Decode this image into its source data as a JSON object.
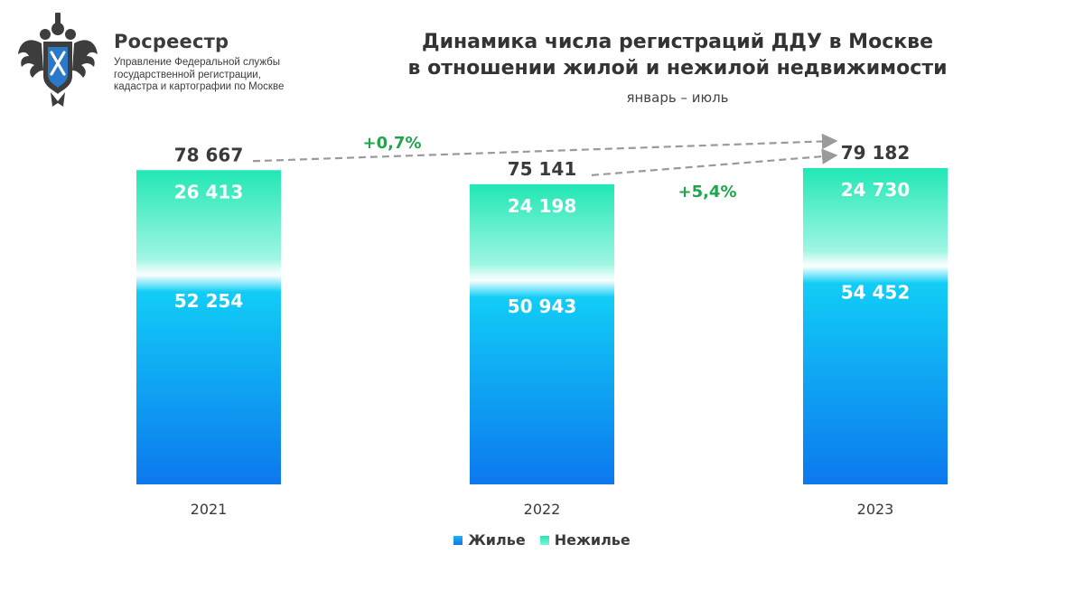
{
  "header": {
    "org_name": "Росреестр",
    "org_sub": [
      "Управление Федеральной службы",
      "государственной регистрации,",
      "кадастра и картографии по Москве"
    ],
    "title_lines": [
      "Динамика числа регистраций ДДУ в Москве",
      "в отношении жилой и нежилой недвижимости"
    ],
    "subtitle": "январь – июль"
  },
  "legend": [
    {
      "label": "Жилье",
      "color": "#1590f0"
    },
    {
      "label": "Нежилье",
      "color": "#2ee6bd"
    }
  ],
  "colors": {
    "residential_top": "#12d4f7",
    "residential_bottom": "#0c78ee",
    "nonres_top": "#21e7b5",
    "nonres_bottom": "#b8f9ec",
    "growth": "#1fa64a",
    "arrow": "#9a9a9a",
    "text": "#3a3a3a"
  },
  "chart_data": {
    "type": "bar",
    "stacked": true,
    "categories": [
      "2021",
      "2022",
      "2023"
    ],
    "series": [
      {
        "name": "Жилье",
        "values": [
          52254,
          50943,
          54452
        ]
      },
      {
        "name": "Нежилье",
        "values": [
          26413,
          24198,
          24730
        ]
      }
    ],
    "data_labels": {
      "Жилье": [
        "52 254",
        "50 943",
        "54 452"
      ],
      "Нежилье": [
        "26 413",
        "24 198",
        "24 730"
      ]
    },
    "totals": [
      78667,
      75141,
      79182
    ],
    "total_labels": [
      "78 667",
      "75 141",
      "79 182"
    ],
    "annotations": [
      {
        "text": "+0,7%",
        "from": "2021",
        "to": "2023"
      },
      {
        "text": "+5,4%",
        "from": "2022",
        "to": "2023"
      }
    ],
    "title": "Динамика числа регистраций ДДУ в Москве в отношении жилой и нежилой недвижимости",
    "subtitle": "январь – июль",
    "xlabel": "",
    "ylabel": "",
    "ylim": [
      0,
      79182
    ],
    "grid": false,
    "legend_position": "bottom"
  }
}
